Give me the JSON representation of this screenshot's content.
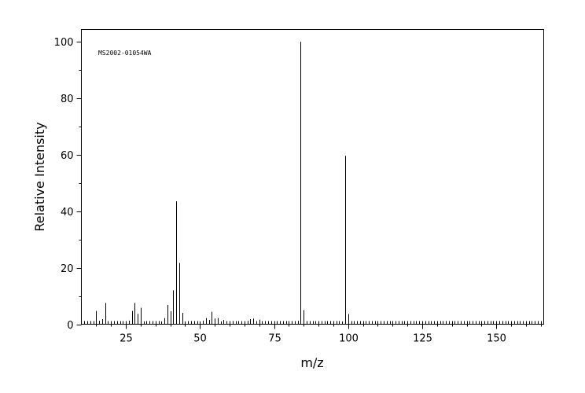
{
  "chart_data": {
    "type": "bar",
    "spectrum_id": "MS2002-01054WA",
    "xlabel": "m/z",
    "ylabel": "Relative Intensity",
    "xlim": [
      10,
      166
    ],
    "ylim": [
      0,
      100
    ],
    "x_ticks": [
      25,
      50,
      75,
      100,
      125,
      150
    ],
    "y_ticks": [
      0,
      20,
      40,
      60,
      80,
      100
    ],
    "grid": false,
    "peaks": [
      {
        "mz": 15,
        "intensity": 4.7
      },
      {
        "mz": 16,
        "intensity": 1.2
      },
      {
        "mz": 17,
        "intensity": 1.8
      },
      {
        "mz": 18,
        "intensity": 7.5
      },
      {
        "mz": 26,
        "intensity": 1.3
      },
      {
        "mz": 27,
        "intensity": 4.7
      },
      {
        "mz": 28,
        "intensity": 7.5
      },
      {
        "mz": 29,
        "intensity": 3.7
      },
      {
        "mz": 30,
        "intensity": 5.8
      },
      {
        "mz": 31,
        "intensity": 1.0
      },
      {
        "mz": 37,
        "intensity": 1.0
      },
      {
        "mz": 38,
        "intensity": 2.2
      },
      {
        "mz": 39,
        "intensity": 6.8
      },
      {
        "mz": 40,
        "intensity": 4.6
      },
      {
        "mz": 41,
        "intensity": 12.0
      },
      {
        "mz": 42,
        "intensity": 43.5
      },
      {
        "mz": 43,
        "intensity": 21.7
      },
      {
        "mz": 44,
        "intensity": 4.0
      },
      {
        "mz": 45,
        "intensity": 1.0
      },
      {
        "mz": 50,
        "intensity": 1.0
      },
      {
        "mz": 51,
        "intensity": 1.3
      },
      {
        "mz": 52,
        "intensity": 2.2
      },
      {
        "mz": 53,
        "intensity": 1.5
      },
      {
        "mz": 54,
        "intensity": 4.4
      },
      {
        "mz": 55,
        "intensity": 2.0
      },
      {
        "mz": 56,
        "intensity": 2.2
      },
      {
        "mz": 57,
        "intensity": 1.0
      },
      {
        "mz": 58,
        "intensity": 1.5
      },
      {
        "mz": 66,
        "intensity": 1.2
      },
      {
        "mz": 67,
        "intensity": 1.8
      },
      {
        "mz": 68,
        "intensity": 2.0
      },
      {
        "mz": 70,
        "intensity": 1.6
      },
      {
        "mz": 83,
        "intensity": 1.2
      },
      {
        "mz": 84,
        "intensity": 100.0
      },
      {
        "mz": 85,
        "intensity": 5.0
      },
      {
        "mz": 98,
        "intensity": 1.0
      },
      {
        "mz": 99,
        "intensity": 59.6
      },
      {
        "mz": 100,
        "intensity": 3.6
      }
    ]
  }
}
